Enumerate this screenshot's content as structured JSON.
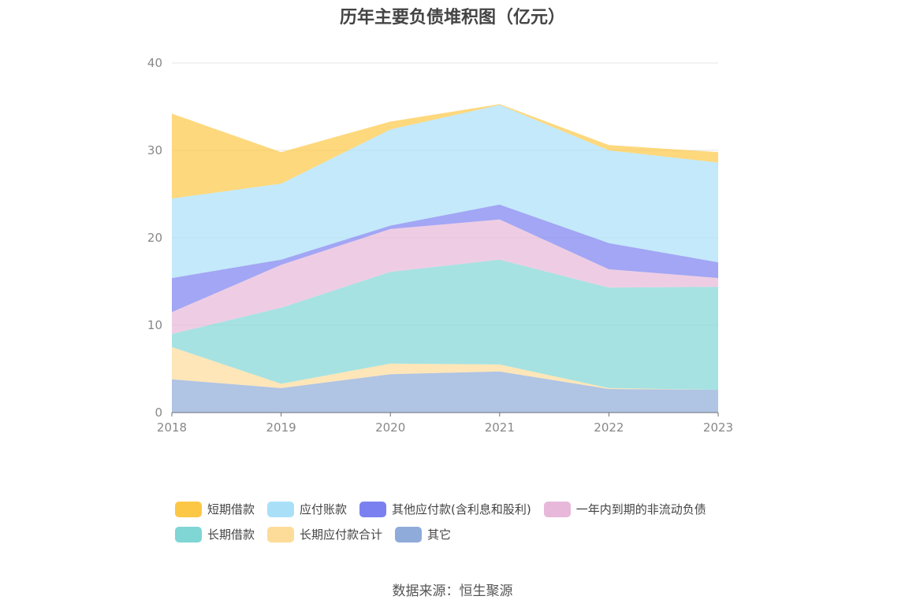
{
  "chart_data": {
    "type": "area",
    "stacked": true,
    "title": "历年主要负债堆积图（亿元）",
    "source": "数据来源：恒生聚源",
    "xlabel": "",
    "ylabel": "",
    "x": [
      "2018",
      "2019",
      "2020",
      "2021",
      "2022",
      "2023"
    ],
    "ylim": [
      0,
      40
    ],
    "yticks": [
      "0",
      "10",
      "20",
      "30",
      "40"
    ],
    "grid": true,
    "legend_position": "bottom",
    "series": [
      {
        "name": "其它",
        "color": "#8fabd9",
        "values": [
          3.8,
          2.8,
          4.4,
          4.7,
          2.7,
          2.6
        ]
      },
      {
        "name": "长期应付款合计",
        "color": "#fddc9a",
        "values": [
          3.7,
          0.5,
          1.2,
          0.8,
          0.1,
          0.0
        ]
      },
      {
        "name": "长期借款",
        "color": "#80d5d5",
        "values": [
          1.5,
          8.7,
          10.5,
          12.0,
          11.5,
          11.8
        ]
      },
      {
        "name": "一年内到期的非流动负债",
        "color": "#e7b8d9",
        "values": [
          2.5,
          4.9,
          4.9,
          4.6,
          2.1,
          1.0
        ]
      },
      {
        "name": "其他应付款(含利息和股利)",
        "color": "#7b80f0",
        "values": [
          3.9,
          0.6,
          0.4,
          1.7,
          3.0,
          1.8
        ]
      },
      {
        "name": "应付账款",
        "color": "#a9e0f8",
        "values": [
          9.1,
          8.7,
          11.0,
          11.4,
          10.6,
          11.4
        ]
      },
      {
        "name": "短期借款",
        "color": "#fdc746",
        "values": [
          9.7,
          3.6,
          0.9,
          0.1,
          0.6,
          1.2
        ]
      }
    ]
  },
  "legend": {
    "rows": [
      [
        "短期借款",
        "应付账款",
        "其他应付款(含利息和股利)",
        "一年内到期的非流动负债"
      ],
      [
        "长期借款",
        "长期应付款合计",
        "其它"
      ]
    ]
  }
}
